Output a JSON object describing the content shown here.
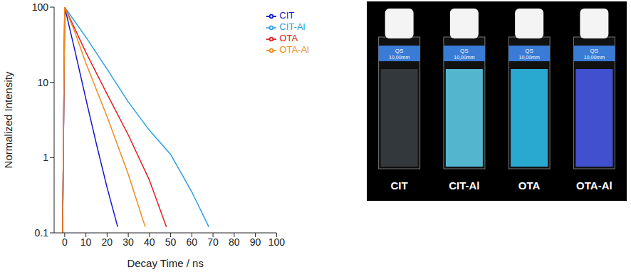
{
  "chart_data": {
    "type": "line",
    "x_label": "Decay Time / ns",
    "y_label": "Normalized Intensity",
    "log": "y",
    "xlim": [
      -5,
      100
    ],
    "xticks": [
      0,
      10,
      20,
      30,
      40,
      50,
      60,
      70,
      80,
      90,
      100
    ],
    "ylim": [
      0.1,
      100
    ],
    "yticks": [
      0.1,
      1,
      10,
      100
    ],
    "legend": "upper right",
    "series": [
      {
        "name": "CIT",
        "color": "#1515d0",
        "x": [
          -1,
          0,
          5,
          10,
          15,
          20,
          25
        ],
        "values": [
          0.1,
          100,
          25,
          6,
          1.5,
          0.4,
          0.12
        ]
      },
      {
        "name": "CIT-Al",
        "color": "#2aa0e6",
        "x": [
          -1,
          0,
          10,
          20,
          30,
          40,
          50,
          60,
          68
        ],
        "values": [
          0.1,
          100,
          40,
          15,
          5.5,
          2.3,
          1.1,
          0.35,
          0.12
        ]
      },
      {
        "name": "OTA",
        "color": "#e02020",
        "x": [
          -1,
          0,
          10,
          20,
          30,
          40,
          48
        ],
        "values": [
          0.1,
          100,
          25,
          7,
          2,
          0.5,
          0.12
        ]
      },
      {
        "name": "OTA-Al",
        "color": "#f08a1e",
        "x": [
          -1,
          0,
          5,
          10,
          20,
          30,
          38
        ],
        "values": [
          0.1,
          100,
          45,
          18,
          3.5,
          0.6,
          0.12
        ]
      }
    ]
  },
  "photo": {
    "labels": [
      "CIT",
      "CIT-Al",
      "OTA",
      "OTA-Al"
    ],
    "colors": [
      "#3a3f44",
      "#5fd3f0",
      "#2fc4f2",
      "#4a5cf0"
    ],
    "cell_text": [
      "QS",
      "10,00mm"
    ]
  }
}
